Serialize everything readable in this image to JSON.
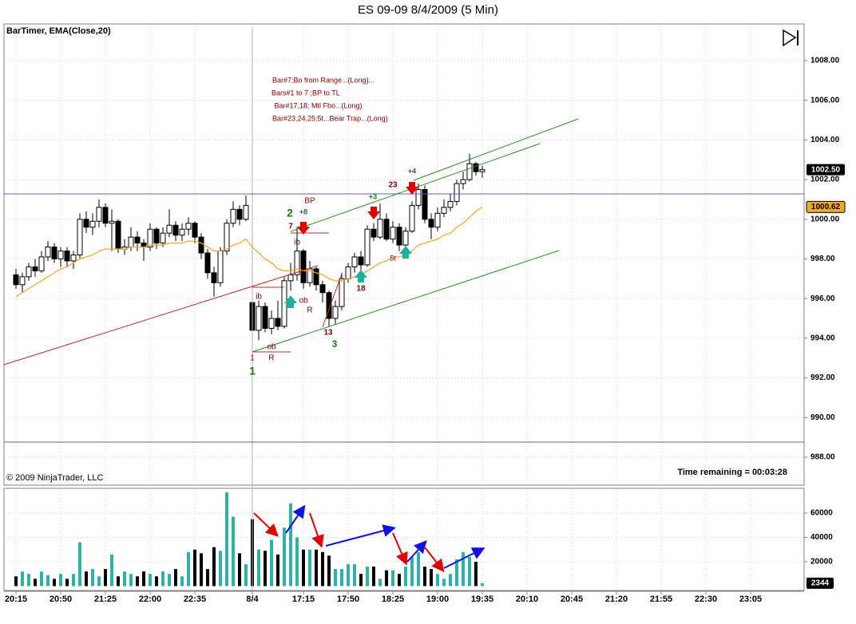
{
  "chart_data": [
    {
      "type": "candlestick",
      "title": "ES 09-09  8/4/2009 (5 Min)",
      "subtitle": "BarTimer, EMA(Close,20)",
      "copyright": "© 2009 NinjaTrader, LLC",
      "timer": "Time remaining = 00:03:28",
      "up_color": "#ffffff",
      "down_color": "#000000",
      "ema_color": "#f0a830",
      "grid": true,
      "xlim": [
        -1.875,
        123.375
      ],
      "xticks": [
        {
          "value": 0,
          "label": "20:15"
        },
        {
          "value": 7,
          "label": "20:50"
        },
        {
          "value": 14,
          "label": "21:25"
        },
        {
          "value": 21,
          "label": "22:00"
        },
        {
          "value": 28,
          "label": "22:35"
        },
        {
          "value": 37,
          "label": "8/4"
        },
        {
          "value": 45,
          "label": "17:15"
        },
        {
          "value": 52,
          "label": "17:50"
        },
        {
          "value": 59,
          "label": "18:25"
        },
        {
          "value": 66,
          "label": "19:00"
        },
        {
          "value": 73,
          "label": "19:35"
        },
        {
          "value": 80,
          "label": "20:10"
        },
        {
          "value": 87,
          "label": "20:45"
        },
        {
          "value": 94,
          "label": "21:20"
        },
        {
          "value": 101,
          "label": "21:55"
        },
        {
          "value": 108,
          "label": "22:30"
        },
        {
          "value": 115,
          "label": "23:05"
        }
      ],
      "ylim": [
        986.59,
        1009.851
      ],
      "yticks": [
        {
          "value": 988,
          "label": "988.00"
        },
        {
          "value": 990,
          "label": "990.00"
        },
        {
          "value": 992,
          "label": "992.00"
        },
        {
          "value": 994,
          "label": "994.00"
        },
        {
          "value": 996,
          "label": "996.00"
        },
        {
          "value": 998,
          "label": "998.00"
        },
        {
          "value": 1000,
          "label": "1000.00"
        },
        {
          "value": 1002,
          "label": "1002.00"
        },
        {
          "value": 1004,
          "label": "1004.00"
        },
        {
          "value": 1006,
          "label": "1006.00"
        },
        {
          "value": 1008,
          "label": "1008.00"
        }
      ],
      "candles": [
        [
          997.2,
          997.5,
          996.5,
          996.7
        ],
        [
          996.7,
          997.3,
          996.3,
          997.1
        ],
        [
          997.1,
          997.8,
          996.9,
          997.6
        ],
        [
          997.6,
          998.0,
          997.1,
          997.4
        ],
        [
          997.4,
          998.4,
          997.3,
          998.1
        ],
        [
          998.1,
          998.9,
          997.9,
          998.6
        ],
        [
          998.6,
          998.8,
          997.8,
          998.0
        ],
        [
          998.0,
          998.6,
          997.6,
          998.4
        ],
        [
          998.4,
          998.6,
          997.6,
          997.9
        ],
        [
          997.9,
          998.4,
          997.5,
          998.2
        ],
        [
          998.2,
          1000.3,
          998.0,
          1000.0
        ],
        [
          1000.0,
          1000.4,
          999.3,
          999.6
        ],
        [
          999.6,
          1000.3,
          999.2,
          999.9
        ],
        [
          999.9,
          1001.0,
          999.6,
          1000.6
        ],
        [
          1000.6,
          1000.8,
          999.6,
          999.8
        ],
        [
          999.8,
          1000.5,
          998.4,
          999.9
        ],
        [
          999.9,
          1000.0,
          998.3,
          998.5
        ],
        [
          998.5,
          999.0,
          998.2,
          998.6
        ],
        [
          998.6,
          999.6,
          998.4,
          999.1
        ],
        [
          999.1,
          999.4,
          998.4,
          998.8
        ],
        [
          998.8,
          999.0,
          997.9,
          998.6
        ],
        [
          998.6,
          999.8,
          998.4,
          999.5
        ],
        [
          999.5,
          999.6,
          998.5,
          998.8
        ],
        [
          998.8,
          999.6,
          998.6,
          999.3
        ],
        [
          999.3,
          1000.5,
          999.1,
          999.7
        ],
        [
          999.7,
          999.9,
          998.9,
          999.2
        ],
        [
          999.2,
          999.8,
          998.9,
          999.5
        ],
        [
          999.5,
          1000.1,
          999.2,
          999.8
        ],
        [
          999.8,
          999.9,
          998.8,
          999.1
        ],
        [
          999.1,
          999.3,
          998.0,
          998.3
        ],
        [
          998.3,
          998.5,
          997.0,
          997.3
        ],
        [
          997.3,
          997.6,
          996.1,
          996.8
        ],
        [
          996.8,
          998.6,
          996.6,
          998.4
        ],
        [
          998.4,
          1000.0,
          998.2,
          999.8
        ],
        [
          999.8,
          1000.9,
          999.6,
          1000.5
        ],
        [
          1000.5,
          1000.7,
          999.7,
          1000.0
        ],
        [
          1000.0,
          1001.2,
          999.9,
          1000.7
        ],
        [
          995.8,
          996.6,
          993.3,
          994.4
        ],
        [
          994.4,
          995.9,
          993.9,
          995.6
        ],
        [
          995.6,
          995.8,
          994.3,
          994.5
        ],
        [
          994.5,
          995.4,
          994.2,
          995.0
        ],
        [
          995.0,
          995.9,
          994.4,
          994.6
        ],
        [
          994.6,
          997.1,
          994.5,
          996.9
        ],
        [
          996.9,
          997.8,
          996.4,
          997.2
        ],
        [
          997.2,
          999.6,
          996.9,
          998.4
        ],
        [
          998.4,
          998.5,
          996.5,
          996.8
        ],
        [
          996.8,
          997.9,
          996.6,
          997.5
        ],
        [
          997.5,
          997.6,
          996.4,
          996.7
        ],
        [
          996.7,
          996.9,
          995.8,
          996.3
        ],
        [
          996.3,
          996.4,
          994.6,
          995.0
        ],
        [
          995.0,
          995.9,
          994.7,
          995.6
        ],
        [
          995.6,
          997.3,
          995.4,
          997.0
        ],
        [
          997.0,
          997.8,
          996.8,
          997.6
        ],
        [
          997.6,
          998.3,
          997.3,
          998.1
        ],
        [
          998.1,
          998.4,
          997.4,
          997.7
        ],
        [
          997.7,
          999.7,
          997.6,
          999.5
        ],
        [
          999.5,
          999.8,
          998.9,
          999.1
        ],
        [
          999.1,
          1000.8,
          999.0,
          1000.0
        ],
        [
          1000.0,
          1000.3,
          998.9,
          999.0
        ],
        [
          999.0,
          999.9,
          998.8,
          999.6
        ],
        [
          999.6,
          999.8,
          998.4,
          998.7
        ],
        [
          998.7,
          999.6,
          998.5,
          999.4
        ],
        [
          999.4,
          1000.9,
          999.3,
          1000.7
        ],
        [
          1000.7,
          1001.8,
          1000.5,
          1001.5
        ],
        [
          1001.5,
          1001.7,
          999.8,
          1000.0
        ],
        [
          1000.0,
          1000.3,
          999.0,
          999.6
        ],
        [
          999.6,
          1000.6,
          999.4,
          1000.3
        ],
        [
          1000.3,
          1001.0,
          1000.1,
          1000.6
        ],
        [
          1000.6,
          1001.3,
          1000.4,
          1000.9
        ],
        [
          1000.9,
          1002.0,
          1000.7,
          1001.8
        ],
        [
          1001.8,
          1002.4,
          1001.5,
          1002.0
        ],
        [
          1002.0,
          1003.3,
          1001.9,
          1002.8
        ],
        [
          1002.8,
          1002.9,
          1002.2,
          1002.4
        ],
        [
          1002.4,
          1002.7,
          1002.1,
          1002.5
        ]
      ],
      "ema_values": [
        996.1,
        996.3,
        996.5,
        996.7,
        996.9,
        997.1,
        997.3,
        997.5,
        997.6,
        997.8,
        998.0,
        998.1,
        998.2,
        998.4,
        998.5,
        998.5,
        998.5,
        998.5,
        998.6,
        998.6,
        998.6,
        998.7,
        998.7,
        998.7,
        998.8,
        998.8,
        998.8,
        998.9,
        998.9,
        998.8,
        998.6,
        998.4,
        998.4,
        998.5,
        998.7,
        998.8,
        999.0,
        998.6,
        998.3,
        998.0,
        997.8,
        997.5,
        997.4,
        997.4,
        997.5,
        997.4,
        997.4,
        997.3,
        997.2,
        997.0,
        996.9,
        996.9,
        997.0,
        997.1,
        997.2,
        997.4,
        997.6,
        997.8,
        997.9,
        998.1,
        998.1,
        998.2,
        998.4,
        998.7,
        998.8,
        998.9,
        999.0,
        999.2,
        999.3,
        999.6,
        999.8,
        1000.1,
        1000.4,
        1000.62
      ],
      "last_close_label": "1002.50",
      "ema_last_label": "1000.62"
    },
    {
      "type": "bar",
      "up_color": "#2bb3a8",
      "down_color": "#000000",
      "ylim": [
        -3606,
        80328
      ],
      "yticks": [
        20000,
        40000,
        60000
      ],
      "values": [
        8000,
        12000,
        10000,
        6000,
        12000,
        9000,
        6000,
        10000,
        6000,
        10000,
        36000,
        12000,
        14000,
        8000,
        14000,
        26000,
        8000,
        12000,
        10000,
        8000,
        12000,
        10000,
        8000,
        12000,
        10000,
        14000,
        8000,
        28000,
        30000,
        27000,
        14000,
        32000,
        29000,
        77000,
        57000,
        27000,
        18000,
        55000,
        30000,
        29000,
        38000,
        26000,
        48000,
        68000,
        40000,
        30000,
        30000,
        30000,
        28000,
        25000,
        14000,
        14000,
        18000,
        18000,
        10000,
        16000,
        16000,
        6000,
        13000,
        13000,
        10000,
        16000,
        24000,
        28000,
        16000,
        14000,
        10000,
        6000,
        10000,
        22000,
        28000,
        24000,
        20000,
        2344
      ]
    }
  ],
  "annotations": [
    "Bar#7;Bo from Range...(Long)...",
    "Bars#1 to 7 ;BP to TL",
    " Bar#17,18; Mtl Fbo...(Long)",
    "Bar#23,24,25;5t...Bear Trap...(Long)",
    "1",
    "1",
    "R",
    "ob",
    "ib",
    "2",
    "+8",
    "BP",
    "7",
    "ib",
    "ob",
    "R",
    "13",
    "3",
    "18",
    "5t",
    "+3",
    "23",
    "+4"
  ]
}
